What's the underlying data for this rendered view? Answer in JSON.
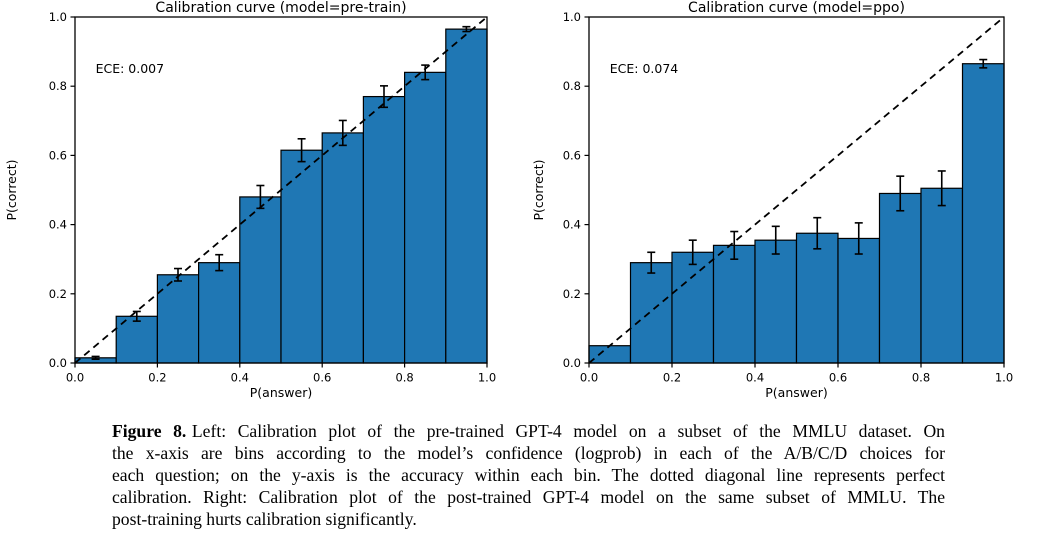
{
  "page": {
    "background": "#ffffff"
  },
  "figure": {
    "caption_label": "Figure 8.",
    "caption_lines": [
      "Left: Calibration plot of the pre-trained GPT-4 model on a subset of the MMLU dataset. On",
      "the x-axis are bins according to the model’s confidence (logprob) in each of the A/B/C/D choices for",
      "each question; on the y-axis is the accuracy within each bin. The dotted diagonal line represents perfect",
      "calibration. Right: Calibration plot of the post-trained GPT-4 model on the same subset of MMLU. The",
      "post-training hurts calibration significantly."
    ]
  },
  "chart_data": [
    {
      "type": "bar",
      "title": "Calibration curve (model=pre-train)",
      "annotation": {
        "text": "ECE: 0.007",
        "x": 0.05,
        "y": 0.85
      },
      "xlabel": "P(answer)",
      "ylabel": "P(correct)",
      "xlim": [
        0.0,
        1.0
      ],
      "ylim": [
        0.0,
        1.0
      ],
      "xticks": [
        0.0,
        0.2,
        0.4,
        0.6,
        0.8,
        1.0
      ],
      "yticks": [
        0.0,
        0.2,
        0.4,
        0.6,
        0.8,
        1.0
      ],
      "xtick_labels": [
        "0.0",
        "0.2",
        "0.4",
        "0.6",
        "0.8",
        "1.0"
      ],
      "ytick_labels": [
        "0.0",
        "0.2",
        "0.4",
        "0.6",
        "0.8",
        "1.0"
      ],
      "grid": false,
      "legend": "none",
      "bin_width": 0.1,
      "bin_centers": [
        0.05,
        0.15,
        0.25,
        0.35,
        0.45,
        0.55,
        0.65,
        0.75,
        0.85,
        0.95
      ],
      "values": [
        0.015,
        0.135,
        0.255,
        0.29,
        0.48,
        0.615,
        0.665,
        0.77,
        0.84,
        0.965
      ],
      "errors": [
        0.004,
        0.014,
        0.018,
        0.023,
        0.033,
        0.033,
        0.036,
        0.031,
        0.021,
        0.007
      ],
      "bar_color": "#1f77b4",
      "edge_color": "#000000",
      "diagonal": {
        "from": [
          0,
          0
        ],
        "to": [
          1,
          1
        ],
        "style": "dashed",
        "color": "#000000",
        "meaning": "perfect calibration"
      }
    },
    {
      "type": "bar",
      "title": "Calibration curve (model=ppo)",
      "annotation": {
        "text": "ECE: 0.074",
        "x": 0.05,
        "y": 0.85
      },
      "xlabel": "P(answer)",
      "ylabel": "P(correct)",
      "xlim": [
        0.0,
        1.0
      ],
      "ylim": [
        0.0,
        1.0
      ],
      "xticks": [
        0.0,
        0.2,
        0.4,
        0.6,
        0.8,
        1.0
      ],
      "yticks": [
        0.0,
        0.2,
        0.4,
        0.6,
        0.8,
        1.0
      ],
      "xtick_labels": [
        "0.0",
        "0.2",
        "0.4",
        "0.6",
        "0.8",
        "1.0"
      ],
      "ytick_labels": [
        "0.0",
        "0.2",
        "0.4",
        "0.6",
        "0.8",
        "1.0"
      ],
      "grid": false,
      "legend": "none",
      "bin_width": 0.1,
      "bin_centers": [
        0.05,
        0.15,
        0.25,
        0.35,
        0.45,
        0.55,
        0.65,
        0.75,
        0.85,
        0.95
      ],
      "values": [
        0.05,
        0.29,
        0.32,
        0.34,
        0.355,
        0.375,
        0.36,
        0.49,
        0.505,
        0.865
      ],
      "errors": [
        0,
        0.03,
        0.035,
        0.04,
        0.04,
        0.045,
        0.045,
        0.05,
        0.05,
        0.012
      ],
      "bar_color": "#1f77b4",
      "edge_color": "#000000",
      "diagonal": {
        "from": [
          0,
          0
        ],
        "to": [
          1,
          1
        ],
        "style": "dashed",
        "color": "#000000",
        "meaning": "perfect calibration"
      }
    }
  ]
}
